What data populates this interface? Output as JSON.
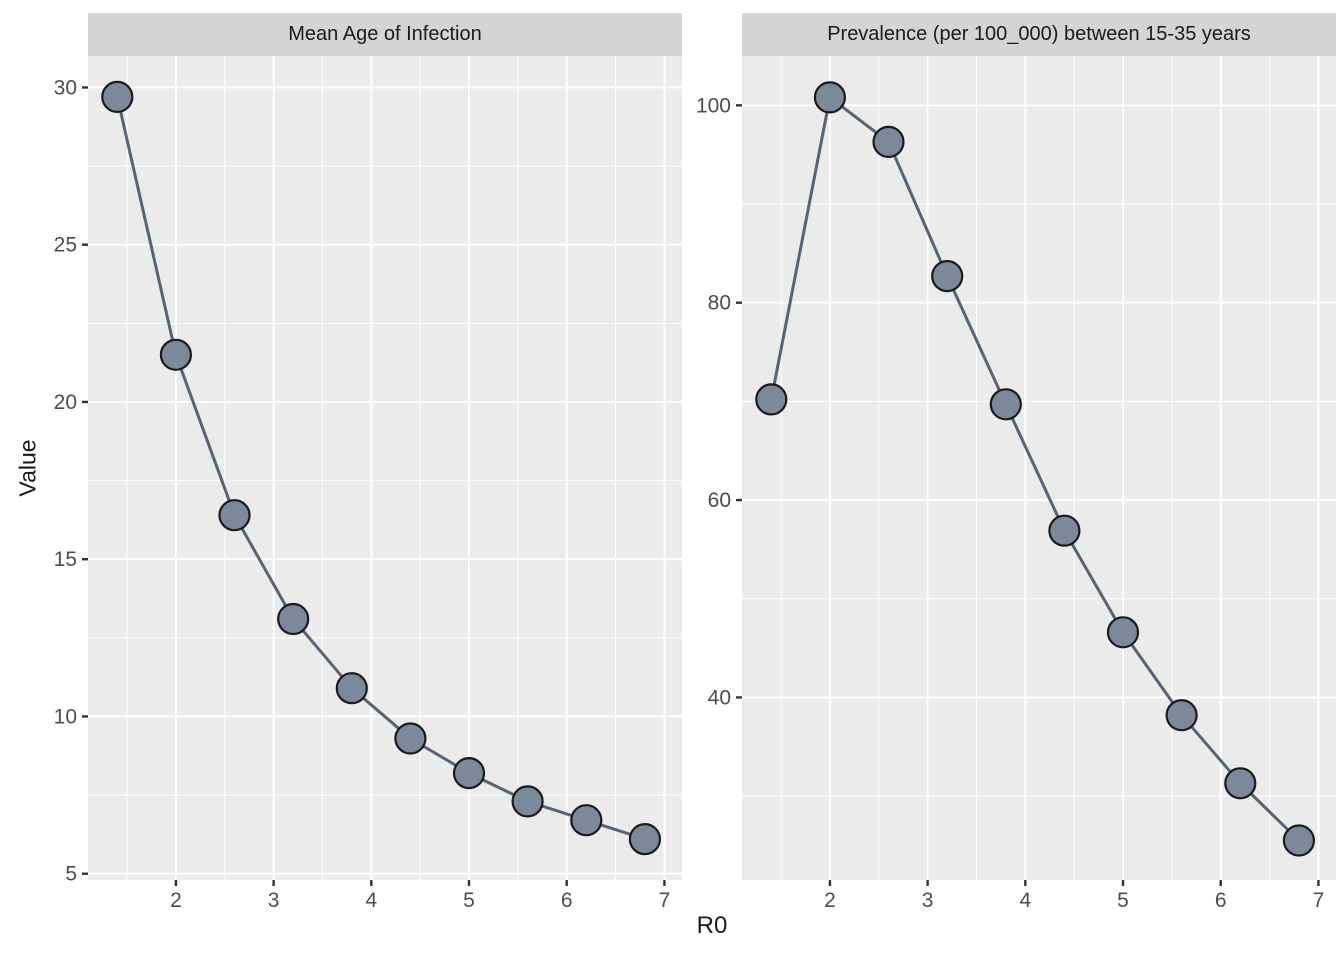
{
  "figure": {
    "x_axis_title": "R0",
    "y_axis_title": "Value"
  },
  "style": {
    "panel_bg": "#EBEBEB",
    "strip_bg": "#D4D4D4",
    "grid_color": "#FFFFFF",
    "line_color": "#566476",
    "point_fill": "#7B899B",
    "point_stroke": "#1A1A1A",
    "tick_mark_color": "#333333",
    "tick_label_color": "#4D4D4D",
    "title_color": "#1A1A1A"
  },
  "chart_data": [
    {
      "type": "line",
      "title": "Mean Age of Infection",
      "xlabel": "R0",
      "ylabel": "Value",
      "x": [
        1.4,
        2.0,
        2.6,
        3.2,
        3.8,
        4.4,
        5.0,
        5.6,
        6.2,
        6.8
      ],
      "values": [
        29.7,
        21.5,
        16.4,
        13.1,
        10.9,
        9.3,
        8.2,
        7.3,
        6.7,
        6.1
      ],
      "xlim": [
        1.1,
        7.18
      ],
      "ylim": [
        4.8,
        31.0
      ],
      "x_ticks": [
        2,
        3,
        4,
        5,
        6,
        7
      ],
      "x_minor_ticks": [
        1.5,
        2.5,
        3.5,
        4.5,
        5.5,
        6.5
      ],
      "y_ticks": [
        5,
        10,
        15,
        20,
        25,
        30
      ],
      "y_minor_ticks": [
        7.5,
        12.5,
        17.5,
        22.5,
        27.5
      ],
      "grid": true,
      "legend": false,
      "marker": "circle"
    },
    {
      "type": "line",
      "title": "Prevalence (per 100_000) between 15-35 years",
      "xlabel": "R0",
      "ylabel": "Value",
      "x": [
        1.4,
        2.0,
        2.6,
        3.2,
        3.8,
        4.4,
        5.0,
        5.6,
        6.2,
        6.8
      ],
      "values": [
        70.2,
        100.8,
        96.3,
        82.7,
        69.7,
        56.9,
        46.6,
        38.2,
        31.3,
        25.5
      ],
      "xlim": [
        1.1,
        7.18
      ],
      "ylim": [
        21.5,
        105.0
      ],
      "x_ticks": [
        2,
        3,
        4,
        5,
        6,
        7
      ],
      "x_minor_ticks": [
        1.5,
        2.5,
        3.5,
        4.5,
        5.5,
        6.5
      ],
      "y_ticks": [
        40,
        60,
        80,
        100
      ],
      "y_minor_ticks": [
        30,
        50,
        70,
        90
      ],
      "grid": true,
      "legend": false,
      "marker": "circle"
    }
  ]
}
